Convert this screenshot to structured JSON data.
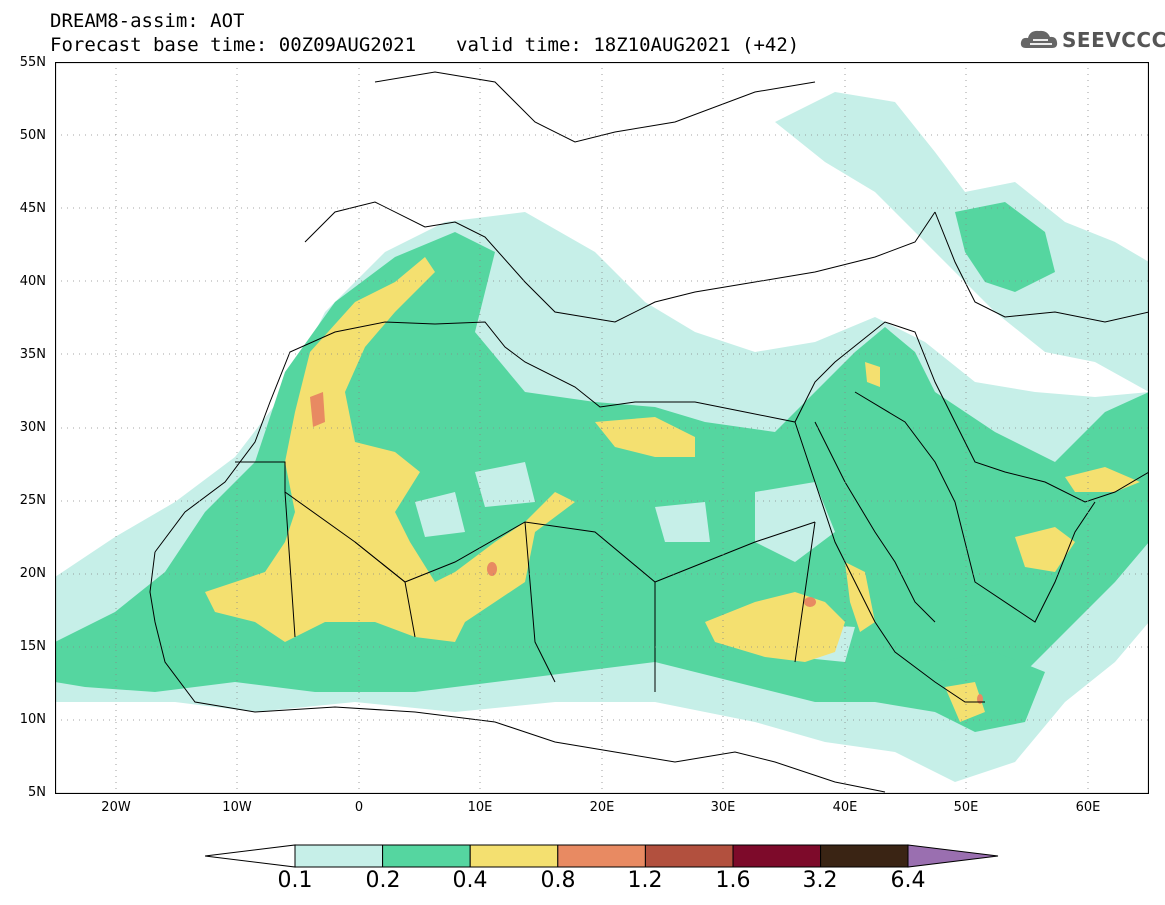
{
  "header": {
    "title_line1": "DREAM8-assim: AOT",
    "base_time": "Forecast base time: 00Z09AUG2021",
    "valid_time": "valid time: 18Z10AUG2021 (+42)",
    "logo_text": "SEEVCCC"
  },
  "map": {
    "variable": "AOT",
    "lat_range": [
      5,
      55
    ],
    "lon_range": [
      -25,
      65
    ],
    "lat_labels": [
      "55N",
      "50N",
      "45N",
      "40N",
      "35N",
      "30N",
      "25N",
      "20N",
      "15N",
      "10N",
      "5N"
    ],
    "lon_labels": [
      "20W",
      "10W",
      "0",
      "10E",
      "20E",
      "30E",
      "40E",
      "50E",
      "60E"
    ],
    "grid": "dotted"
  },
  "colorbar": {
    "labels": [
      "0.1",
      "0.2",
      "0.4",
      "0.8",
      "1.2",
      "1.6",
      "3.2",
      "6.4"
    ],
    "colors": [
      "#c6efe8",
      "#55d6a0",
      "#f4e070",
      "#e88a62",
      "#b2503e",
      "#7d0a2a",
      "#3a2414",
      "#9a6fb0"
    ]
  }
}
